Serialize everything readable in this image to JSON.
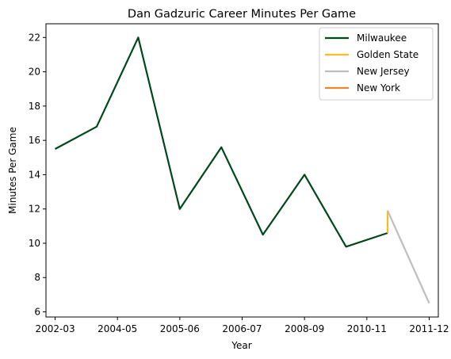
{
  "chart_data": {
    "type": "line",
    "title": "Dan Gadzuric Career Minutes Per Game",
    "xlabel": "Year",
    "ylabel": "Minutes Per Game",
    "x_ticks": [
      "2002-03",
      "2004-05",
      "2005-06",
      "2006-07",
      "2008-09",
      "2010-11",
      "2011-12"
    ],
    "y_ticks": [
      6,
      8,
      10,
      12,
      14,
      16,
      18,
      20,
      22
    ],
    "ylim": [
      5.7,
      22.8
    ],
    "xlim": [
      -0.22,
      9.22
    ],
    "grid": false,
    "legend_position": "top-right",
    "series": [
      {
        "name": "Milwaukee",
        "color": "#00471b",
        "points": [
          [
            0,
            15.5
          ],
          [
            1,
            16.8
          ],
          [
            2,
            22.0
          ],
          [
            3,
            12.0
          ],
          [
            4,
            15.6
          ],
          [
            5,
            10.5
          ],
          [
            6,
            14.0
          ],
          [
            7,
            9.8
          ],
          [
            8,
            10.6
          ]
        ]
      },
      {
        "name": "Golden State",
        "color": "#fdb927",
        "points": [
          [
            8,
            10.6
          ],
          [
            8,
            11.9
          ]
        ]
      },
      {
        "name": "New Jersey",
        "color": "#bebebe",
        "points": [
          [
            8,
            11.9
          ],
          [
            9,
            6.5
          ]
        ]
      },
      {
        "name": "New York",
        "color": "#f58426",
        "points": []
      }
    ]
  }
}
